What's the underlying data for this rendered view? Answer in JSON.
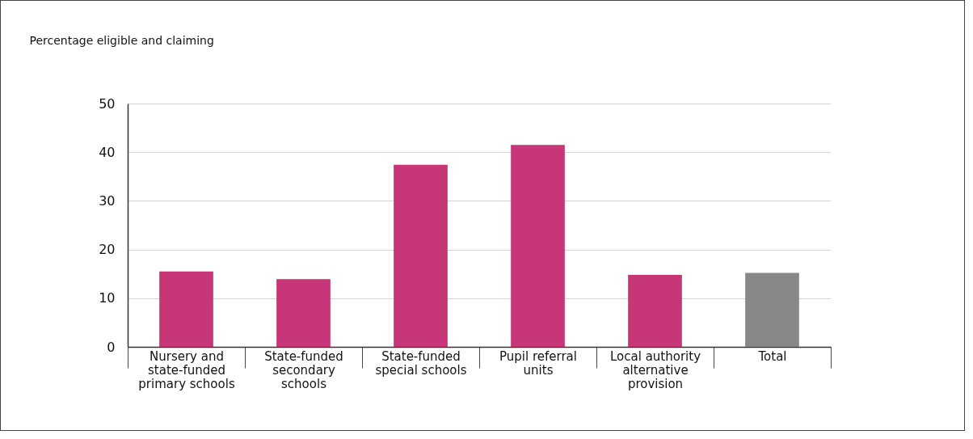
{
  "chart_data": {
    "type": "bar",
    "ylabel": "Percentage eligible and claiming",
    "categories": [
      "Nursery and state-funded primary schools",
      "State-funded secondary schools",
      "State-funded special schools",
      "Pupil referral units",
      "Local authority alternative provision",
      "Total"
    ],
    "values": [
      15.5,
      13.9,
      37.4,
      41.5,
      14.8,
      15.2
    ],
    "colors": [
      "#c73677",
      "#c73677",
      "#c73677",
      "#c73677",
      "#c73677",
      "#888888"
    ],
    "ylim": [
      0,
      50
    ],
    "yticks": [
      0,
      10,
      20,
      30,
      40,
      50
    ],
    "grid": "y"
  }
}
